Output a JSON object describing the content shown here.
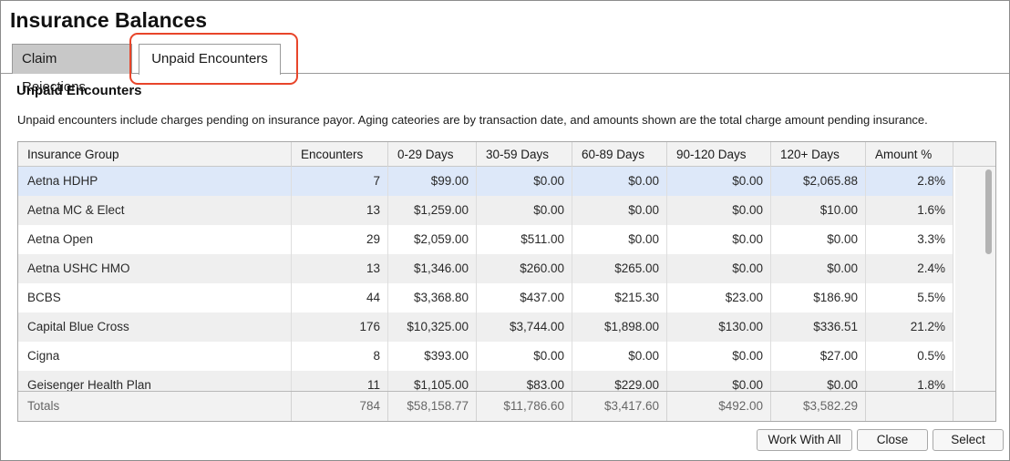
{
  "window": {
    "title": "Insurance Balances"
  },
  "tabs": [
    {
      "label": "Claim Rejections",
      "active": false
    },
    {
      "label": "Unpaid Encounters",
      "active": true
    }
  ],
  "highlight_color": "#e8452a",
  "section": {
    "title": "Unpaid Encounters",
    "description": "Unpaid encounters include charges pending on insurance payor. Aging cateories are by transaction date, and amounts shown are the total charge amount pending insurance."
  },
  "table": {
    "columns": [
      "Insurance Group",
      "Encounters",
      "0-29 Days",
      "30-59 Days",
      "60-89 Days",
      "90-120 Days",
      "120+ Days",
      "Amount %"
    ],
    "rows": [
      [
        "Aetna HDHP",
        "7",
        "$99.00",
        "$0.00",
        "$0.00",
        "$0.00",
        "$2,065.88",
        "2.8%"
      ],
      [
        "Aetna MC & Elect",
        "13",
        "$1,259.00",
        "$0.00",
        "$0.00",
        "$0.00",
        "$10.00",
        "1.6%"
      ],
      [
        "Aetna Open",
        "29",
        "$2,059.00",
        "$511.00",
        "$0.00",
        "$0.00",
        "$0.00",
        "3.3%"
      ],
      [
        "Aetna USHC HMO",
        "13",
        "$1,346.00",
        "$260.00",
        "$265.00",
        "$0.00",
        "$0.00",
        "2.4%"
      ],
      [
        "BCBS",
        "44",
        "$3,368.80",
        "$437.00",
        "$215.30",
        "$23.00",
        "$186.90",
        "5.5%"
      ],
      [
        "Capital Blue Cross",
        "176",
        "$10,325.00",
        "$3,744.00",
        "$1,898.00",
        "$130.00",
        "$336.51",
        "21.2%"
      ],
      [
        "Cigna",
        "8",
        "$393.00",
        "$0.00",
        "$0.00",
        "$0.00",
        "$27.00",
        "0.5%"
      ],
      [
        "Geisenger Health Plan",
        "11",
        "$1,105.00",
        "$83.00",
        "$229.00",
        "$0.00",
        "$0.00",
        "1.8%"
      ]
    ],
    "selected_row": 0,
    "totals": [
      "Totals",
      "784",
      "$58,158.77",
      "$11,786.60",
      "$3,417.60",
      "$492.00",
      "$3,582.29",
      ""
    ],
    "selected_color": "#dde8f9"
  },
  "buttons": {
    "work_with_all": "Work With All",
    "close": "Close",
    "select": "Select"
  }
}
